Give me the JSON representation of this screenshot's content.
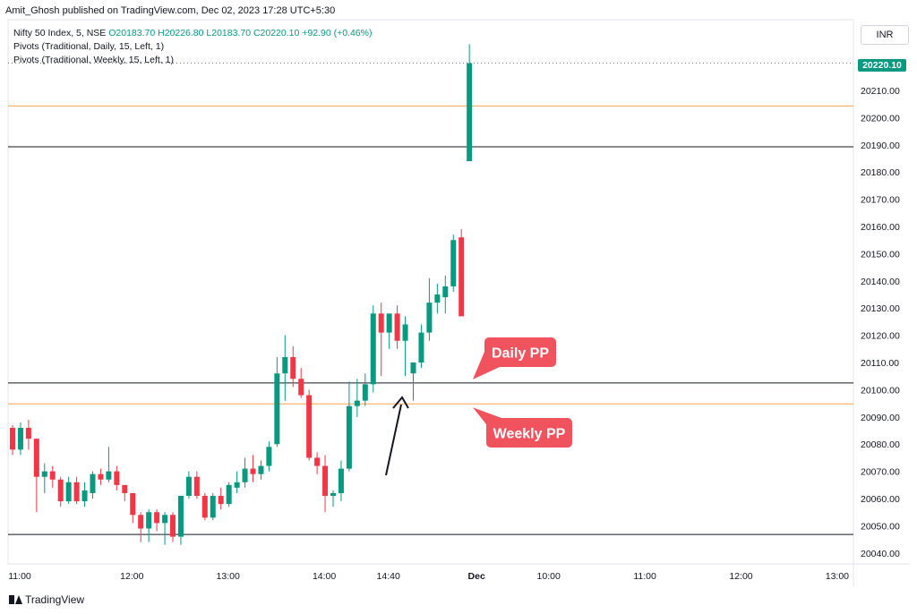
{
  "header": {
    "publisher": "Amit_Ghosh published on TradingView.com, Dec 02, 2023 17:28 UTC+5:30",
    "symbol": "Nifty 50 Index, 5, NSE",
    "ohlc": "O20183.70 H20226.80 L20183.70 C20220.10 +92.90 (+0.46%)",
    "indicators": [
      "Pivots (Traditional, Daily, 15, Left, 1)",
      "Pivots (Traditional, Weekly, 15, Left, 1)"
    ],
    "currency": "INR",
    "last_price": "20220.10"
  },
  "footer": {
    "brand": "TradingView"
  },
  "colors": {
    "up": "#089981",
    "down": "#f23645",
    "weekly_pivot": "#f7a34b",
    "daily_pivot": "#131722",
    "callout": "#f0525e"
  },
  "chart_data": {
    "type": "candlestick",
    "ylim": [
      20036,
      20236
    ],
    "y_ticks": [
      20040,
      20050,
      20060,
      20070,
      20080,
      20090,
      20100,
      20110,
      20120,
      20130,
      20140,
      20150,
      20160,
      20170,
      20180,
      20190,
      20200,
      20210
    ],
    "y_tick_labels": [
      "20040.00",
      "20050.00",
      "20060.00",
      "20070.00",
      "20080.00",
      "20090.00",
      "20100.00",
      "20110.00",
      "20120.00",
      "20130.00",
      "20140.00",
      "20150.00",
      "20160.00",
      "20170.00",
      "20180.00",
      "20190.00",
      "20200.00",
      "20210.00"
    ],
    "x_ticks": [
      {
        "i": 0,
        "label": "11:00"
      },
      {
        "i": 14,
        "label": "12:00"
      },
      {
        "i": 26,
        "label": "13:00"
      },
      {
        "i": 38,
        "label": "14:00"
      },
      {
        "i": 46,
        "label": "14:40"
      },
      {
        "i": 57,
        "label": "Dec"
      },
      {
        "i": 66,
        "label": "10:00"
      },
      {
        "i": 78,
        "label": "11:00"
      },
      {
        "i": 90,
        "label": "12:00"
      },
      {
        "i": 102,
        "label": "13:00"
      }
    ],
    "candles": [
      {
        "o": 20086,
        "h": 20087,
        "l": 20076,
        "c": 20078
      },
      {
        "o": 20078,
        "h": 20088,
        "l": 20076,
        "c": 20086
      },
      {
        "o": 20086,
        "h": 20089,
        "l": 20078,
        "c": 20082
      },
      {
        "o": 20082,
        "h": 20082,
        "l": 20055,
        "c": 20068
      },
      {
        "o": 20068,
        "h": 20073,
        "l": 20062,
        "c": 20070
      },
      {
        "o": 20070,
        "h": 20072,
        "l": 20064,
        "c": 20067
      },
      {
        "o": 20067,
        "h": 20068,
        "l": 20057,
        "c": 20059
      },
      {
        "o": 20059,
        "h": 20068,
        "l": 20058,
        "c": 20066
      },
      {
        "o": 20066,
        "h": 20068,
        "l": 20058,
        "c": 20059
      },
      {
        "o": 20059,
        "h": 20066,
        "l": 20057,
        "c": 20063
      },
      {
        "o": 20062,
        "h": 20070,
        "l": 20060,
        "c": 20069
      },
      {
        "o": 20069,
        "h": 20071,
        "l": 20065,
        "c": 20067
      },
      {
        "o": 20067,
        "h": 20079,
        "l": 20066,
        "c": 20070
      },
      {
        "o": 20070,
        "h": 20072,
        "l": 20063,
        "c": 20065
      },
      {
        "o": 20065,
        "h": 20064,
        "l": 20059,
        "c": 20062
      },
      {
        "o": 20062,
        "h": 20062,
        "l": 20051,
        "c": 20054
      },
      {
        "o": 20054,
        "h": 20055,
        "l": 20044,
        "c": 20049
      },
      {
        "o": 20049,
        "h": 20056,
        "l": 20044,
        "c": 20055
      },
      {
        "o": 20055,
        "h": 20056,
        "l": 20048,
        "c": 20051
      },
      {
        "o": 20051,
        "h": 20055,
        "l": 20043,
        "c": 20054
      },
      {
        "o": 20054,
        "h": 20055,
        "l": 20044,
        "c": 20046
      },
      {
        "o": 20046,
        "h": 20061,
        "l": 20043,
        "c": 20061
      },
      {
        "o": 20061,
        "h": 20070,
        "l": 20060,
        "c": 20068
      },
      {
        "o": 20068,
        "h": 20070,
        "l": 20060,
        "c": 20061
      },
      {
        "o": 20061,
        "h": 20062,
        "l": 20052,
        "c": 20053
      },
      {
        "o": 20053,
        "h": 20062,
        "l": 20052,
        "c": 20061
      },
      {
        "o": 20061,
        "h": 20064,
        "l": 20056,
        "c": 20058
      },
      {
        "o": 20058,
        "h": 20066,
        "l": 20057,
        "c": 20065
      },
      {
        "o": 20064,
        "h": 20070,
        "l": 20062,
        "c": 20066
      },
      {
        "o": 20066,
        "h": 20075,
        "l": 20064,
        "c": 20071
      },
      {
        "o": 20071,
        "h": 20076,
        "l": 20066,
        "c": 20069
      },
      {
        "o": 20069,
        "h": 20074,
        "l": 20067,
        "c": 20072
      },
      {
        "o": 20072,
        "h": 20081,
        "l": 20070,
        "c": 20079
      },
      {
        "o": 20080,
        "h": 20112,
        "l": 20079,
        "c": 20106
      },
      {
        "o": 20106,
        "h": 20120,
        "l": 20096,
        "c": 20112
      },
      {
        "o": 20112,
        "h": 20116,
        "l": 20101,
        "c": 20104
      },
      {
        "o": 20104,
        "h": 20108,
        "l": 20097,
        "c": 20098
      },
      {
        "o": 20098,
        "h": 20100,
        "l": 20074,
        "c": 20075
      },
      {
        "o": 20075,
        "h": 20077,
        "l": 20069,
        "c": 20072
      },
      {
        "o": 20072,
        "h": 20076,
        "l": 20055,
        "c": 20061
      },
      {
        "o": 20061,
        "h": 20063,
        "l": 20057,
        "c": 20062
      },
      {
        "o": 20062,
        "h": 20074,
        "l": 20059,
        "c": 20071
      },
      {
        "o": 20071,
        "h": 20103,
        "l": 20070,
        "c": 20094
      },
      {
        "o": 20094,
        "h": 20104,
        "l": 20090,
        "c": 20096
      },
      {
        "o": 20096,
        "h": 20106,
        "l": 20094,
        "c": 20102
      },
      {
        "o": 20102,
        "h": 20131,
        "l": 20099,
        "c": 20128
      },
      {
        "o": 20128,
        "h": 20132,
        "l": 20105,
        "c": 20121
      },
      {
        "o": 20121,
        "h": 20128,
        "l": 20115,
        "c": 20128
      },
      {
        "o": 20128,
        "h": 20131,
        "l": 20115,
        "c": 20118
      },
      {
        "o": 20118,
        "h": 20127,
        "l": 20105,
        "c": 20124
      },
      {
        "o": 20106,
        "h": 20110,
        "l": 20096,
        "c": 20110
      },
      {
        "o": 20110,
        "h": 20124,
        "l": 20108,
        "c": 20121
      },
      {
        "o": 20121,
        "h": 20141,
        "l": 20118,
        "c": 20132
      },
      {
        "o": 20132,
        "h": 20139,
        "l": 20128,
        "c": 20135
      },
      {
        "o": 20134,
        "h": 20142,
        "l": 20128,
        "c": 20138
      },
      {
        "o": 20138,
        "h": 20157,
        "l": 20136,
        "c": 20155
      },
      {
        "o": 20156,
        "h": 20159,
        "l": 20127,
        "c": 20127
      },
      {
        "o": 20184,
        "h": 20227,
        "l": 20184,
        "c": 20220
      }
    ],
    "pivots": [
      {
        "name": "weekly_upper",
        "value": 20204.3,
        "color": "#f7a34b",
        "x_from_i": 0
      },
      {
        "name": "daily_upper",
        "value": 20189.3,
        "color": "#131722",
        "x_from_i": 0
      },
      {
        "name": "daily_pp",
        "value": 20102.5,
        "color": "#131722",
        "x_from_i": 0
      },
      {
        "name": "weekly_pp",
        "value": 20094.8,
        "color": "#f7a34b",
        "x_from_i": 0
      },
      {
        "name": "daily_lower",
        "value": 20046.8,
        "color": "#131722",
        "x_from_i": 0
      }
    ],
    "last_price_line": 20220.1,
    "annotations": [
      {
        "text": "Daily PP",
        "target_value": 20102.5
      },
      {
        "text": "Weekly PP",
        "target_value": 20094.8
      }
    ]
  }
}
